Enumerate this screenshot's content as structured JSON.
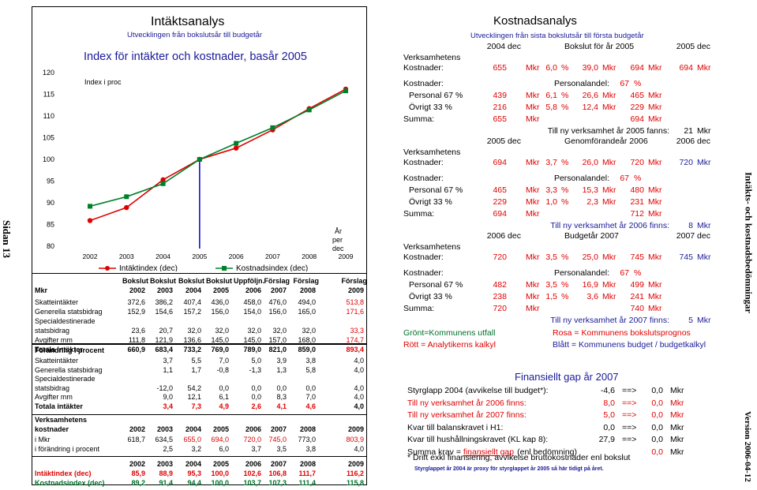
{
  "side": {
    "page_label": "Sidan 13",
    "report_title": "Intäkts- och kostnadsbedömningar",
    "version": "Version 2006-04-12"
  },
  "intakt": {
    "title": "Intäktsanalys",
    "subtitle": "Utvecklingen från bokslutsår till budgetår"
  },
  "chart": {
    "title": "Index för intäkter och kostnader, basår 2005",
    "ylabel": "Index i proc",
    "xunit": "År per dec",
    "legend": [
      "Intäktindex (dec)",
      "Kostnadsindex (dec)"
    ]
  },
  "chart_data": {
    "type": "line",
    "x": [
      "2002",
      "2003",
      "2004",
      "2005",
      "2006",
      "2007",
      "2008",
      "2009"
    ],
    "ylim": [
      80,
      120
    ],
    "yticks": [
      "120",
      "115",
      "110",
      "105",
      "100",
      "95",
      "90",
      "85",
      "80"
    ],
    "series": [
      {
        "name": "Intäktindex (dec)",
        "color": "#e00000",
        "values": [
          85.9,
          88.9,
          95.3,
          100.0,
          102.6,
          106.8,
          111.7,
          116.2
        ]
      },
      {
        "name": "Kostnadsindex (dec)",
        "color": "#00802a",
        "values": [
          89.2,
          91.4,
          94.4,
          100.0,
          103.7,
          107.3,
          111.4,
          115.8
        ]
      }
    ],
    "marker_line_year": "2005"
  },
  "table1": {
    "head1": [
      "Bokslut",
      "Bokslut",
      "Bokslut",
      "Bokslut",
      "Uppföljn.",
      "Förslag",
      "Förslag",
      "Förslag"
    ],
    "mkr": "Mkr",
    "years": [
      "2002",
      "2003",
      "2004",
      "2005",
      "2006",
      "2007",
      "2008",
      "2009"
    ],
    "rows": [
      {
        "label": "Skatteintäkter",
        "values": [
          "372,6",
          "386,2",
          "407,4",
          "436,0",
          "458,0",
          "476,0",
          "494,0",
          "513,8"
        ]
      },
      {
        "label": "Generella statsbidrag",
        "values": [
          "152,9",
          "154,6",
          "157,2",
          "156,0",
          "154,0",
          "156,0",
          "165,0",
          "171,6"
        ]
      },
      {
        "label": "Specialdestinerade",
        "values": []
      },
      {
        "label": "statsbidrag",
        "values": [
          "23,6",
          "20,7",
          "32,0",
          "32,0",
          "32,0",
          "32,0",
          "32,0",
          "33,3"
        ]
      },
      {
        "label": "Avgifter mm",
        "values": [
          "111,8",
          "121,9",
          "136,6",
          "145,0",
          "145,0",
          "157,0",
          "168,0",
          "174,7"
        ]
      },
      {
        "label": "Totala intäkter",
        "values": [
          "660,9",
          "683,4",
          "733,2",
          "769,0",
          "789,0",
          "821,0",
          "859,0",
          "893,4"
        ]
      }
    ]
  },
  "table2": {
    "title": "Förändring i procent",
    "rows": [
      {
        "label": "Skatteintäkter",
        "values": [
          "3,7",
          "5,5",
          "7,0",
          "5,0",
          "3,9",
          "3,8",
          "4,0"
        ]
      },
      {
        "label": "Generella statsbidrag",
        "values": [
          "1,1",
          "1,7",
          "-0,8",
          "-1,3",
          "1,3",
          "5,8",
          "4,0"
        ]
      },
      {
        "label": "Specialdestinerade",
        "values": []
      },
      {
        "label": "statsbidrag",
        "values": [
          "-12,0",
          "54,2",
          "0,0",
          "0,0",
          "0,0",
          "0,0",
          "4,0"
        ]
      },
      {
        "label": "Avgifter mm",
        "values": [
          "9,0",
          "12,1",
          "6,1",
          "0,0",
          "8,3",
          "7,0",
          "4,0"
        ]
      },
      {
        "label": "Totala intäkter",
        "values": [
          "3,4",
          "7,3",
          "4,9",
          "2,6",
          "4,1",
          "4,6",
          "4,0"
        ]
      }
    ]
  },
  "table3": {
    "title1": "Verksamhetens",
    "title2": "kostnader",
    "years": [
      "2002",
      "2003",
      "2004",
      "2005",
      "2006",
      "2007",
      "2008",
      "2009"
    ],
    "rows": [
      {
        "label": "i Mkr",
        "values": [
          "618,7",
          "634,5",
          "655,0",
          "694,0",
          "720,0",
          "745,0",
          "773,0",
          "803,9"
        ]
      },
      {
        "label": "i förändring i procent",
        "values": [
          "2,5",
          "3,2",
          "6,0",
          "3,7",
          "3,5",
          "3,8",
          "4,0"
        ]
      }
    ]
  },
  "table4": {
    "years": [
      "2002",
      "2003",
      "2004",
      "2005",
      "2006",
      "2007",
      "2008",
      "2009"
    ],
    "rows": [
      {
        "label": "Intäktindex (dec)",
        "values": [
          "85,9",
          "88,9",
          "95,3",
          "100,0",
          "102,6",
          "106,8",
          "111,7",
          "116,2"
        ]
      },
      {
        "label": "Kostnadsindex (dec)",
        "values": [
          "89,2",
          "91,4",
          "94,4",
          "100,0",
          "103,7",
          "107,3",
          "111,4",
          "115,8"
        ]
      }
    ]
  },
  "kostnad": {
    "title": "Kostnadsanalys",
    "subtitle": "Utvecklingen från sista bokslutsår till första budgetår",
    "blocks": [
      {
        "h_from": "2004 dec",
        "h_mid": "Bokslut för år 2005",
        "h_to": "2005 dec",
        "v1": "Verksamhetens",
        "v2": "Kostnader:",
        "k_from": "655",
        "k_pct": "6,0",
        "k_mkr": "39,0",
        "k_to": "694",
        "k_right": "694",
        "pa_label": "Personalandel:",
        "pa_val": "67",
        "p_label": "Personal 67 %",
        "p_from": "439",
        "p_pct": "6,1",
        "p_mkr": "26,6",
        "p_to": "465",
        "o_label": "Övrigt 33 %",
        "o_from": "216",
        "o_pct": "5,8",
        "o_mkr": "12,4",
        "o_to": "229",
        "s_label": "Summa:",
        "s_from": "655",
        "s_to": "694",
        "ny_label": "Till ny verksamhet år 2005 fanns:",
        "ny_val": "21"
      },
      {
        "h_from": "2005 dec",
        "h_mid": "Genomförandeår 2006",
        "h_to": "2006 dec",
        "v1": "Verksamhetens",
        "v2": "Kostnader:",
        "k_from": "694",
        "k_pct": "3,7",
        "k_mkr": "26,0",
        "k_to": "720",
        "k_right": "720",
        "pa_label": "Personalandel:",
        "pa_val": "67",
        "p_label": "Personal 67 %",
        "p_from": "465",
        "p_pct": "3,3",
        "p_mkr": "15,3",
        "p_to": "480",
        "o_label": "Övrigt 33 %",
        "o_from": "229",
        "o_pct": "1,0",
        "o_mkr": "2,3",
        "o_to": "231",
        "s_label": "Summa:",
        "s_from": "694",
        "s_to": "712",
        "ny_label": "Till ny verksamhet år 2006 finns:",
        "ny_val": "8"
      },
      {
        "h_from": "2006 dec",
        "h_mid": "Budgetår 2007",
        "h_to": "2007 dec",
        "v1": "Verksamhetens",
        "v2": "Kostnader:",
        "k_from": "720",
        "k_pct": "3,5",
        "k_mkr": "25,0",
        "k_to": "745",
        "k_right": "745",
        "pa_label": "Personalandel:",
        "pa_val": "67",
        "p_label": "Personal 67 %",
        "p_from": "482",
        "p_pct": "3,5",
        "p_mkr": "16,9",
        "p_to": "499",
        "o_label": "Övrigt 33 %",
        "o_from": "238",
        "o_pct": "1,5",
        "o_mkr": "3,6",
        "o_to": "241",
        "s_label": "Summa:",
        "s_from": "720",
        "s_to": "740",
        "ny_label": "Till ny verksamhet år 2007 finns:",
        "ny_val": "5"
      }
    ],
    "unit_mkr": "Mkr",
    "unit_pct": "%",
    "legend": {
      "green": "Grönt=Kommunens utfall",
      "red": "Rött = Analytikerns kalkyl",
      "rose": "Rosa = Kommunens bokslutsprognos",
      "blue": "Blått = Kommunens budget / budgetkalkyl"
    }
  },
  "gap": {
    "title": "Finansiellt gap år 2007",
    "rows": [
      {
        "label": "Styrglapp 2004 (avvikelse till budget*):",
        "a": "-4,6",
        "arrow": "==>",
        "b": "0,0",
        "unit": "Mkr",
        "color": "black"
      },
      {
        "label": "Till ny verksamhet år 2006 finns:",
        "a": "8,0",
        "arrow": "==>",
        "b": "0,0",
        "unit": "Mkr",
        "color": "red"
      },
      {
        "label": "Till ny verksamhet år 2007 finns:",
        "a": "5,0",
        "arrow": "==>",
        "b": "0,0",
        "unit": "Mkr",
        "color": "red"
      },
      {
        "label": "Kvar till balanskravet i H1:",
        "a": "0,0",
        "arrow": "==>",
        "b": "0,0",
        "unit": "Mkr",
        "color": "black"
      },
      {
        "label": "Kvar till hushållningskravet (KL kap 8):",
        "a": "27,9",
        "arrow": "==>",
        "b": "0,0",
        "unit": "Mkr",
        "color": "black"
      }
    ],
    "summa_label": "Summa krav = ",
    "summa_link": "finansiellt gap",
    "summa_paren": "(enl bedömning)",
    "summa_val": "0,0",
    "summa_unit": "Mkr",
    "note1": "* Drift exkl finansiering, avvikelse bruttokostnader enl bokslut",
    "note2": "Styrglappet år 2004 är proxy för styrglappet år 2005 så här tidigt på året."
  }
}
